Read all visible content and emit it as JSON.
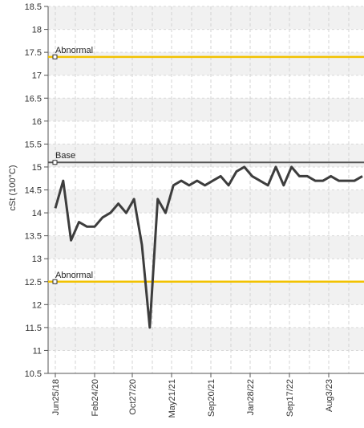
{
  "chart_data": {
    "type": "line",
    "title": "",
    "xlabel": "",
    "ylabel": "cSt (100°C)",
    "ylim": [
      10.5,
      18.5
    ],
    "yticks": [
      10.5,
      11,
      11.5,
      12,
      12.5,
      13,
      13.5,
      14,
      14.5,
      15,
      15.5,
      16,
      16.5,
      17,
      17.5,
      18,
      18.5
    ],
    "ytick_labels": [
      "10.5",
      "11",
      "11.5",
      "12",
      "12.5",
      "13",
      "13.5",
      "14",
      "14.5",
      "15",
      "15.5",
      "16",
      "16.5",
      "17",
      "17.5",
      "18",
      "18.5"
    ],
    "xtick_labels": [
      "Jun25/18",
      "Feb24/20",
      "Oct27/20",
      "May21/21",
      "Sep20/21",
      "Jan28/22",
      "Sep17/22",
      "Aug3/23"
    ],
    "grid": true,
    "series": [
      {
        "values": [
          14.1,
          14.7,
          13.4,
          13.8,
          13.7,
          13.7,
          13.9,
          14.0,
          14.2,
          14.0,
          14.3,
          13.3,
          11.5,
          14.3,
          14.0,
          14.6,
          14.7,
          14.6,
          14.7,
          14.6,
          14.7,
          14.8,
          14.6,
          14.9,
          15.0,
          14.8,
          14.7,
          14.6,
          15.0,
          14.6,
          15.0,
          14.8,
          14.8,
          14.7,
          14.7,
          14.8,
          14.7,
          14.7,
          14.7,
          14.8
        ],
        "color": "#3d3d3d"
      }
    ],
    "reference_lines": [
      {
        "label": "Abnormal",
        "value": 17.4,
        "color": "#f2c200"
      },
      {
        "label": "Base",
        "value": 15.1,
        "color": "#555555"
      },
      {
        "label": "Abnormal",
        "value": 12.5,
        "color": "#f2c200"
      }
    ]
  }
}
